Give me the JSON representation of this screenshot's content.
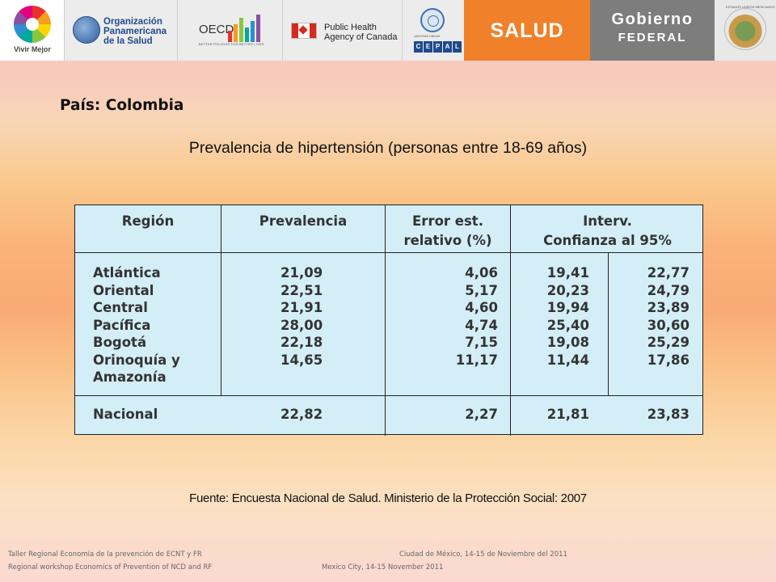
{
  "header": {
    "logos": {
      "vivir_mejor": "Vivir Mejor",
      "ops_line1": "Organización",
      "ops_line2": "Panamericana",
      "ops_line3": "de la Salud",
      "oecd": "OECD",
      "oecd_tagline": "BETTER POLICIES FOR BETTER LIVES",
      "phac_line1": "Public Health",
      "phac_line2": "Agency of Canada",
      "naciones_unidas": "NACIONES UNIDAS",
      "cepal_letters": [
        "C",
        "E",
        "P",
        "A",
        "L"
      ],
      "salud": "SALUD",
      "gobierno_line1": "Gobierno",
      "gobierno_line2": "FEDERAL",
      "escudo_text": "ESTADOS UNIDOS MEXICANOS"
    }
  },
  "slide": {
    "country_title": "País: Colombia",
    "subtitle": "Prevalencia de hipertensión (personas entre 18-69 años)",
    "source": "Fuente: Encuesta Nacional de Salud. Ministerio de la Protección Social: 2007"
  },
  "table": {
    "headers": {
      "region": "Región",
      "prevalencia": "Prevalencia",
      "error_line1": "Error est.",
      "error_line2": "relativo (%)",
      "ic_line1": "Interv.",
      "ic_line2": "Confianza al 95%"
    },
    "regions": [
      "Atlántica",
      "Oriental",
      "Central",
      "Pacífica",
      "Bogotá",
      "Orinoquía y",
      "Amazonía"
    ],
    "prevalencia": [
      "21,09",
      "22,51",
      "21,91",
      "28,00",
      "22,18",
      "14,65"
    ],
    "error": [
      "4,06",
      "5,17",
      "4,60",
      "4,74",
      "7,15",
      "11,17"
    ],
    "ic_low": [
      "19,41",
      "20,23",
      "19,94",
      "25,40",
      "19,08",
      "11,44"
    ],
    "ic_high": [
      "22,77",
      "24,79",
      "23,89",
      "30,60",
      "25,29",
      "17,86"
    ],
    "national": {
      "label": "Nacional",
      "prevalencia": "22,82",
      "error": "2,27",
      "ic_low": "21,81",
      "ic_high": "23,83"
    }
  },
  "footer": {
    "left_line1": "Taller Regional Economía de la prevención de ECNT y FR",
    "left_line2": "Regional workshop Economics of Prevention of NCD and RF",
    "right_line1": "Ciudad de México, 14-15 de Noviembre del 2011",
    "right_line2": "Mexico City, 14-15 November 2011"
  }
}
